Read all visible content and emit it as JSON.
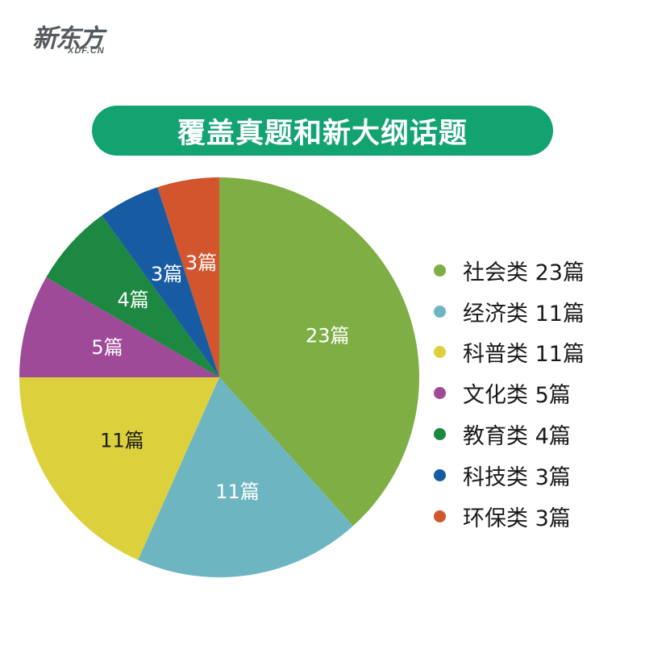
{
  "logo": {
    "main": "新东方",
    "sub": "XDF.CN"
  },
  "chart_data": {
    "type": "pie",
    "title": "覆盖真题和新大纲话题",
    "slices": [
      {
        "name": "社会类",
        "value": 23,
        "label": "23篇",
        "legend": "社会类 23篇",
        "color": "#7fae45",
        "label_color": "#ffffff"
      },
      {
        "name": "经济类",
        "value": 11,
        "label": "11篇",
        "legend": "经济类 11篇",
        "color": "#6db6c1",
        "label_color": "#ffffff"
      },
      {
        "name": "科普类",
        "value": 11,
        "label": "11篇",
        "legend": "科普类 11篇",
        "color": "#dcd13d",
        "label_color": "#1a1a1a"
      },
      {
        "name": "文化类",
        "value": 5,
        "label": "5篇",
        "legend": "文化类 5篇",
        "color": "#9f4a99",
        "label_color": "#ffffff"
      },
      {
        "name": "教育类",
        "value": 4,
        "label": "4篇",
        "legend": "教育类 4篇",
        "color": "#1c8841",
        "label_color": "#ffffff"
      },
      {
        "name": "科技类",
        "value": 3,
        "label": "3篇",
        "legend": "科技类 3篇",
        "color": "#175ca2",
        "label_color": "#ffffff"
      },
      {
        "name": "环保类",
        "value": 3,
        "label": "3篇",
        "legend": "环保类 3篇",
        "color": "#d2552d",
        "label_color": "#ffffff"
      }
    ],
    "legend_position": "right",
    "start": "12 o'clock",
    "direction": "clockwise"
  }
}
